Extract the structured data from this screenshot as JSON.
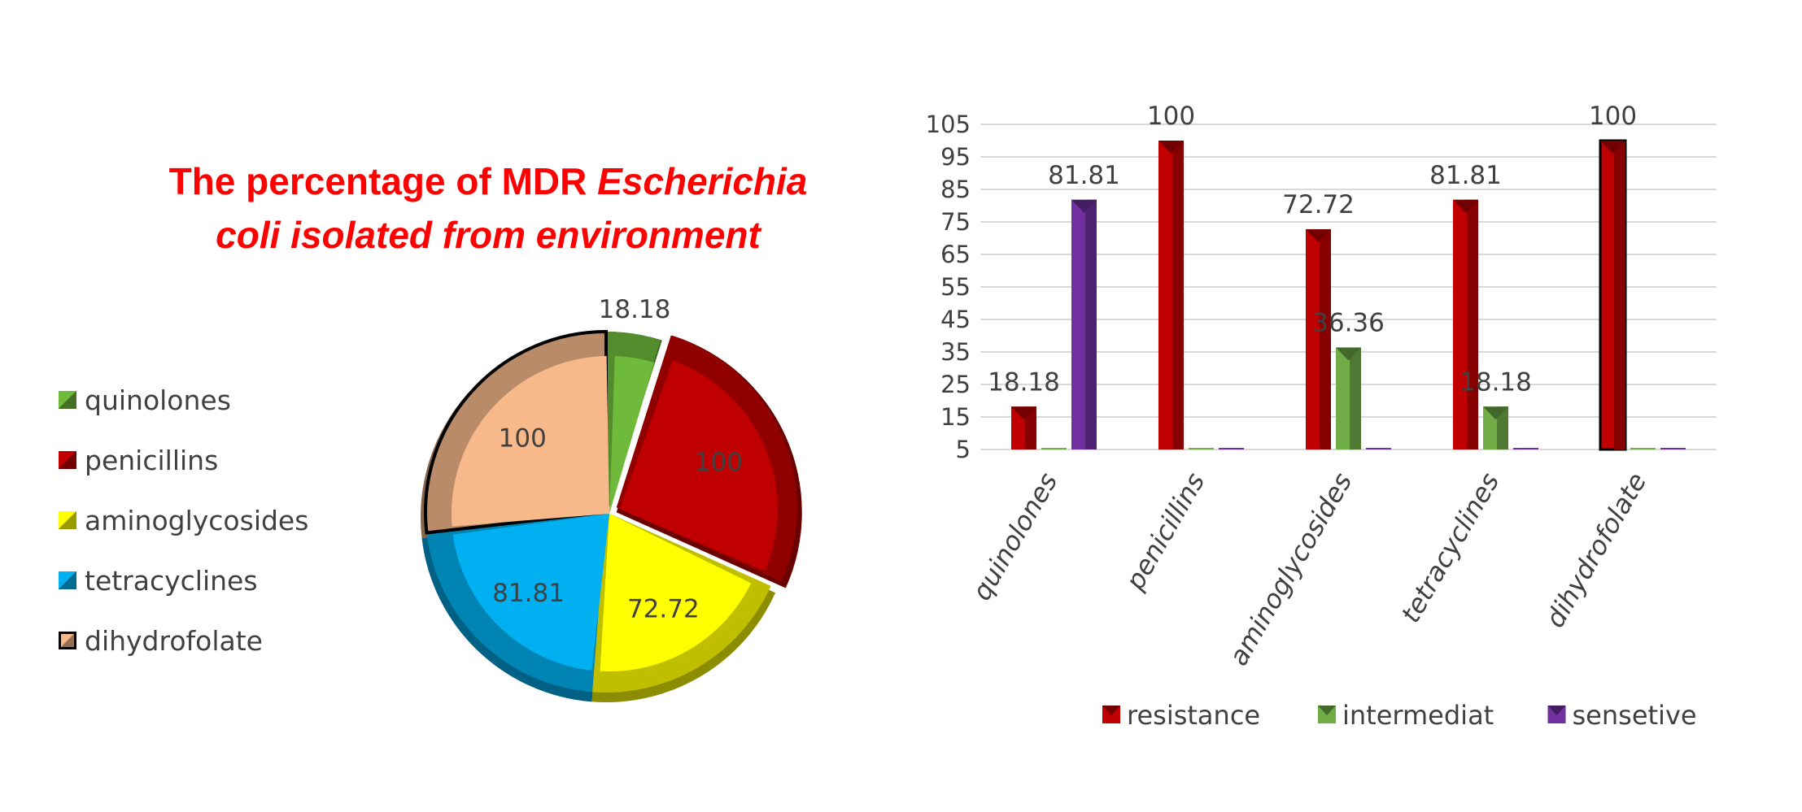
{
  "colors": {
    "quinolones": "#6fba3a",
    "penicillins": "#c00000",
    "aminoglycosides": "#ffff00",
    "tetracyclines": "#00b0f0",
    "dihydrofolate": "#f8b98a",
    "resistance": "#c00000",
    "intermediat": "#70ad47",
    "sensetive": "#7030a0"
  },
  "chart_data": [
    {
      "type": "pie",
      "title_line1_a": "The percentage of  MDR ",
      "title_line1_b": "Escherichia",
      "title_line2": "coli isolated from environment",
      "categories": [
        "quinolones",
        "penicillins",
        "aminoglycosides",
        "tetracyclines",
        "dihydrofolate"
      ],
      "values": [
        18.18,
        100,
        72.72,
        81.81,
        100
      ],
      "data_labels": [
        "18.18",
        "100",
        "72.72",
        "81.81",
        "100"
      ],
      "legend_position": "left",
      "style": "3d-exploded"
    },
    {
      "type": "bar",
      "categories": [
        "quinolones",
        "penicillins",
        "aminoglycosides",
        "tetracyclines",
        "dihydrofolate"
      ],
      "series": [
        {
          "name": "resistance",
          "values": [
            18.18,
            100,
            72.72,
            81.81,
            100
          ]
        },
        {
          "name": "intermediat",
          "values": [
            0,
            0,
            36.36,
            18.18,
            0
          ]
        },
        {
          "name": "sensetive",
          "values": [
            81.81,
            0,
            0,
            0,
            0
          ]
        }
      ],
      "data_labels": [
        {
          "category": "quinolones",
          "series": "resistance",
          "text": "18.18"
        },
        {
          "category": "quinolones",
          "series": "sensetive",
          "text": "81.81"
        },
        {
          "category": "penicillins",
          "series": "resistance",
          "text": "100"
        },
        {
          "category": "aminoglycosides",
          "series": "resistance",
          "text": "72.72"
        },
        {
          "category": "aminoglycosides",
          "series": "intermediat",
          "text": "36.36"
        },
        {
          "category": "tetracyclines",
          "series": "resistance",
          "text": "81.81"
        },
        {
          "category": "tetracyclines",
          "series": "intermediat",
          "text": "18.18"
        },
        {
          "category": "dihydrofolate",
          "series": "resistance",
          "text": "100"
        }
      ],
      "y_ticks": [
        5,
        15,
        25,
        35,
        45,
        55,
        65,
        75,
        85,
        95,
        105
      ],
      "ylim": [
        5,
        105
      ],
      "grid": true,
      "legend_position": "bottom"
    }
  ]
}
